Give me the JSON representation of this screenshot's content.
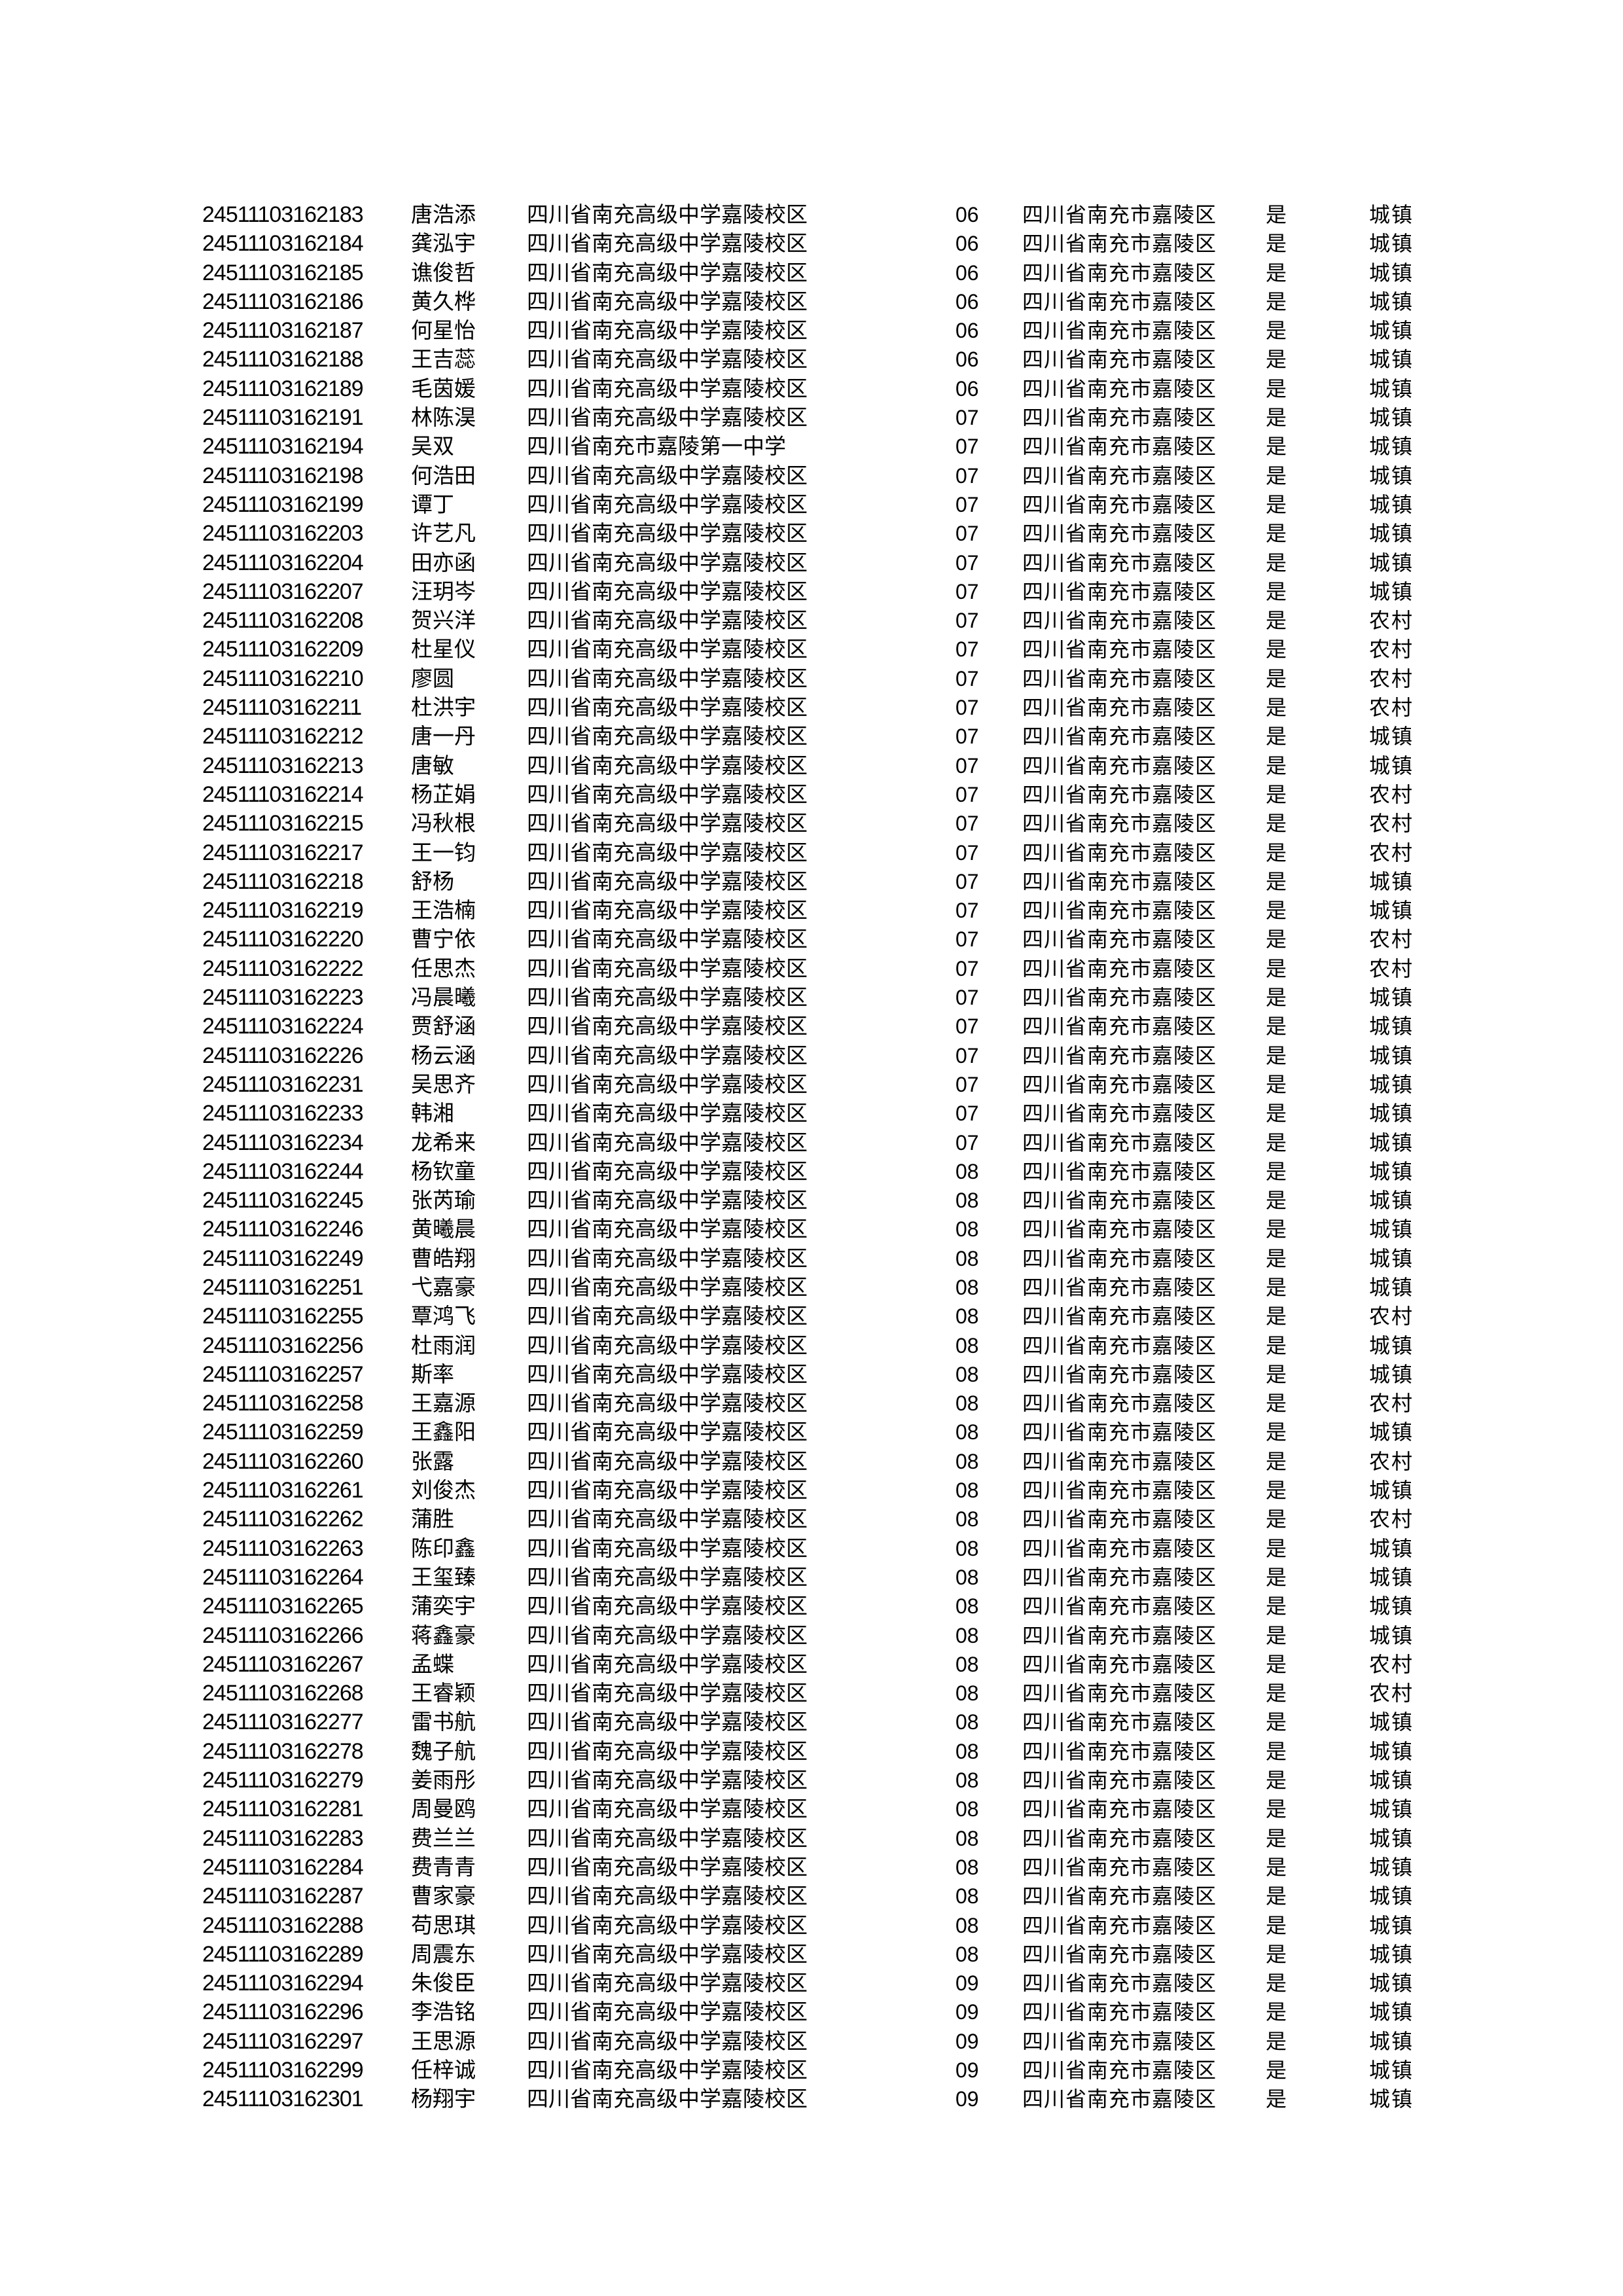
{
  "rows": [
    {
      "id": "24511103162183",
      "name": "唐浩添",
      "school": "四川省南充高级中学嘉陵校区",
      "class": "06",
      "region": "四川省南充市嘉陵区",
      "local": "是",
      "type": "城镇"
    },
    {
      "id": "24511103162184",
      "name": "龚泓宇",
      "school": "四川省南充高级中学嘉陵校区",
      "class": "06",
      "region": "四川省南充市嘉陵区",
      "local": "是",
      "type": "城镇"
    },
    {
      "id": "24511103162185",
      "name": "谯俊哲",
      "school": "四川省南充高级中学嘉陵校区",
      "class": "06",
      "region": "四川省南充市嘉陵区",
      "local": "是",
      "type": "城镇"
    },
    {
      "id": "24511103162186",
      "name": "黄久桦",
      "school": "四川省南充高级中学嘉陵校区",
      "class": "06",
      "region": "四川省南充市嘉陵区",
      "local": "是",
      "type": "城镇"
    },
    {
      "id": "24511103162187",
      "name": "何星怡",
      "school": "四川省南充高级中学嘉陵校区",
      "class": "06",
      "region": "四川省南充市嘉陵区",
      "local": "是",
      "type": "城镇"
    },
    {
      "id": "24511103162188",
      "name": "王吉蕊",
      "school": "四川省南充高级中学嘉陵校区",
      "class": "06",
      "region": "四川省南充市嘉陵区",
      "local": "是",
      "type": "城镇"
    },
    {
      "id": "24511103162189",
      "name": "毛茵媛",
      "school": "四川省南充高级中学嘉陵校区",
      "class": "06",
      "region": "四川省南充市嘉陵区",
      "local": "是",
      "type": "城镇"
    },
    {
      "id": "24511103162191",
      "name": "林陈淏",
      "school": "四川省南充高级中学嘉陵校区",
      "class": "07",
      "region": "四川省南充市嘉陵区",
      "local": "是",
      "type": "城镇"
    },
    {
      "id": "24511103162194",
      "name": "吴双",
      "school": "四川省南充市嘉陵第一中学",
      "class": "07",
      "region": "四川省南充市嘉陵区",
      "local": "是",
      "type": "城镇"
    },
    {
      "id": "24511103162198",
      "name": "何浩田",
      "school": "四川省南充高级中学嘉陵校区",
      "class": "07",
      "region": "四川省南充市嘉陵区",
      "local": "是",
      "type": "城镇"
    },
    {
      "id": "24511103162199",
      "name": "谭丁",
      "school": "四川省南充高级中学嘉陵校区",
      "class": "07",
      "region": "四川省南充市嘉陵区",
      "local": "是",
      "type": "城镇"
    },
    {
      "id": "24511103162203",
      "name": "许艺凡",
      "school": "四川省南充高级中学嘉陵校区",
      "class": "07",
      "region": "四川省南充市嘉陵区",
      "local": "是",
      "type": "城镇"
    },
    {
      "id": "24511103162204",
      "name": "田亦函",
      "school": "四川省南充高级中学嘉陵校区",
      "class": "07",
      "region": "四川省南充市嘉陵区",
      "local": "是",
      "type": "城镇"
    },
    {
      "id": "24511103162207",
      "name": "汪玥岑",
      "school": "四川省南充高级中学嘉陵校区",
      "class": "07",
      "region": "四川省南充市嘉陵区",
      "local": "是",
      "type": "城镇"
    },
    {
      "id": "24511103162208",
      "name": "贺兴洋",
      "school": "四川省南充高级中学嘉陵校区",
      "class": "07",
      "region": "四川省南充市嘉陵区",
      "local": "是",
      "type": "农村"
    },
    {
      "id": "24511103162209",
      "name": "杜星仪",
      "school": "四川省南充高级中学嘉陵校区",
      "class": "07",
      "region": "四川省南充市嘉陵区",
      "local": "是",
      "type": "农村"
    },
    {
      "id": "24511103162210",
      "name": "廖圆",
      "school": "四川省南充高级中学嘉陵校区",
      "class": "07",
      "region": "四川省南充市嘉陵区",
      "local": "是",
      "type": "农村"
    },
    {
      "id": "24511103162211",
      "name": "杜洪宇",
      "school": "四川省南充高级中学嘉陵校区",
      "class": "07",
      "region": "四川省南充市嘉陵区",
      "local": "是",
      "type": "农村"
    },
    {
      "id": "24511103162212",
      "name": "唐一丹",
      "school": "四川省南充高级中学嘉陵校区",
      "class": "07",
      "region": "四川省南充市嘉陵区",
      "local": "是",
      "type": "城镇"
    },
    {
      "id": "24511103162213",
      "name": "唐敏",
      "school": "四川省南充高级中学嘉陵校区",
      "class": "07",
      "region": "四川省南充市嘉陵区",
      "local": "是",
      "type": "城镇"
    },
    {
      "id": "24511103162214",
      "name": "杨芷娟",
      "school": "四川省南充高级中学嘉陵校区",
      "class": "07",
      "region": "四川省南充市嘉陵区",
      "local": "是",
      "type": "农村"
    },
    {
      "id": "24511103162215",
      "name": "冯秋根",
      "school": "四川省南充高级中学嘉陵校区",
      "class": "07",
      "region": "四川省南充市嘉陵区",
      "local": "是",
      "type": "农村"
    },
    {
      "id": "24511103162217",
      "name": "王一钧",
      "school": "四川省南充高级中学嘉陵校区",
      "class": "07",
      "region": "四川省南充市嘉陵区",
      "local": "是",
      "type": "农村"
    },
    {
      "id": "24511103162218",
      "name": "舒杨",
      "school": "四川省南充高级中学嘉陵校区",
      "class": "07",
      "region": "四川省南充市嘉陵区",
      "local": "是",
      "type": "城镇"
    },
    {
      "id": "24511103162219",
      "name": "王浩楠",
      "school": "四川省南充高级中学嘉陵校区",
      "class": "07",
      "region": "四川省南充市嘉陵区",
      "local": "是",
      "type": "城镇"
    },
    {
      "id": "24511103162220",
      "name": "曹宁依",
      "school": "四川省南充高级中学嘉陵校区",
      "class": "07",
      "region": "四川省南充市嘉陵区",
      "local": "是",
      "type": "农村"
    },
    {
      "id": "24511103162222",
      "name": "任思杰",
      "school": "四川省南充高级中学嘉陵校区",
      "class": "07",
      "region": "四川省南充市嘉陵区",
      "local": "是",
      "type": "农村"
    },
    {
      "id": "24511103162223",
      "name": "冯晨曦",
      "school": "四川省南充高级中学嘉陵校区",
      "class": "07",
      "region": "四川省南充市嘉陵区",
      "local": "是",
      "type": "城镇"
    },
    {
      "id": "24511103162224",
      "name": "贾舒涵",
      "school": "四川省南充高级中学嘉陵校区",
      "class": "07",
      "region": "四川省南充市嘉陵区",
      "local": "是",
      "type": "城镇"
    },
    {
      "id": "24511103162226",
      "name": "杨云涵",
      "school": "四川省南充高级中学嘉陵校区",
      "class": "07",
      "region": "四川省南充市嘉陵区",
      "local": "是",
      "type": "城镇"
    },
    {
      "id": "24511103162231",
      "name": "吴思齐",
      "school": "四川省南充高级中学嘉陵校区",
      "class": "07",
      "region": "四川省南充市嘉陵区",
      "local": "是",
      "type": "城镇"
    },
    {
      "id": "24511103162233",
      "name": "韩湘",
      "school": "四川省南充高级中学嘉陵校区",
      "class": "07",
      "region": "四川省南充市嘉陵区",
      "local": "是",
      "type": "城镇"
    },
    {
      "id": "24511103162234",
      "name": "龙希来",
      "school": "四川省南充高级中学嘉陵校区",
      "class": "07",
      "region": "四川省南充市嘉陵区",
      "local": "是",
      "type": "城镇"
    },
    {
      "id": "24511103162244",
      "name": "杨钦童",
      "school": "四川省南充高级中学嘉陵校区",
      "class": "08",
      "region": "四川省南充市嘉陵区",
      "local": "是",
      "type": "城镇"
    },
    {
      "id": "24511103162245",
      "name": "张芮瑜",
      "school": "四川省南充高级中学嘉陵校区",
      "class": "08",
      "region": "四川省南充市嘉陵区",
      "local": "是",
      "type": "城镇"
    },
    {
      "id": "24511103162246",
      "name": "黄曦晨",
      "school": "四川省南充高级中学嘉陵校区",
      "class": "08",
      "region": "四川省南充市嘉陵区",
      "local": "是",
      "type": "城镇"
    },
    {
      "id": "24511103162249",
      "name": "曹皓翔",
      "school": "四川省南充高级中学嘉陵校区",
      "class": "08",
      "region": "四川省南充市嘉陵区",
      "local": "是",
      "type": "城镇"
    },
    {
      "id": "24511103162251",
      "name": "弋嘉豪",
      "school": "四川省南充高级中学嘉陵校区",
      "class": "08",
      "region": "四川省南充市嘉陵区",
      "local": "是",
      "type": "城镇"
    },
    {
      "id": "24511103162255",
      "name": "覃鸿飞",
      "school": "四川省南充高级中学嘉陵校区",
      "class": "08",
      "region": "四川省南充市嘉陵区",
      "local": "是",
      "type": "农村"
    },
    {
      "id": "24511103162256",
      "name": "杜雨润",
      "school": "四川省南充高级中学嘉陵校区",
      "class": "08",
      "region": "四川省南充市嘉陵区",
      "local": "是",
      "type": "城镇"
    },
    {
      "id": "24511103162257",
      "name": "斯率",
      "school": "四川省南充高级中学嘉陵校区",
      "class": "08",
      "region": "四川省南充市嘉陵区",
      "local": "是",
      "type": "城镇"
    },
    {
      "id": "24511103162258",
      "name": "王嘉源",
      "school": "四川省南充高级中学嘉陵校区",
      "class": "08",
      "region": "四川省南充市嘉陵区",
      "local": "是",
      "type": "农村"
    },
    {
      "id": "24511103162259",
      "name": "王鑫阳",
      "school": "四川省南充高级中学嘉陵校区",
      "class": "08",
      "region": "四川省南充市嘉陵区",
      "local": "是",
      "type": "城镇"
    },
    {
      "id": "24511103162260",
      "name": "张露",
      "school": "四川省南充高级中学嘉陵校区",
      "class": "08",
      "region": "四川省南充市嘉陵区",
      "local": "是",
      "type": "农村"
    },
    {
      "id": "24511103162261",
      "name": "刘俊杰",
      "school": "四川省南充高级中学嘉陵校区",
      "class": "08",
      "region": "四川省南充市嘉陵区",
      "local": "是",
      "type": "城镇"
    },
    {
      "id": "24511103162262",
      "name": "蒲胜",
      "school": "四川省南充高级中学嘉陵校区",
      "class": "08",
      "region": "四川省南充市嘉陵区",
      "local": "是",
      "type": "农村"
    },
    {
      "id": "24511103162263",
      "name": "陈印鑫",
      "school": "四川省南充高级中学嘉陵校区",
      "class": "08",
      "region": "四川省南充市嘉陵区",
      "local": "是",
      "type": "城镇"
    },
    {
      "id": "24511103162264",
      "name": "王玺臻",
      "school": "四川省南充高级中学嘉陵校区",
      "class": "08",
      "region": "四川省南充市嘉陵区",
      "local": "是",
      "type": "城镇"
    },
    {
      "id": "24511103162265",
      "name": "蒲奕宇",
      "school": "四川省南充高级中学嘉陵校区",
      "class": "08",
      "region": "四川省南充市嘉陵区",
      "local": "是",
      "type": "城镇"
    },
    {
      "id": "24511103162266",
      "name": "蒋鑫豪",
      "school": "四川省南充高级中学嘉陵校区",
      "class": "08",
      "region": "四川省南充市嘉陵区",
      "local": "是",
      "type": "城镇"
    },
    {
      "id": "24511103162267",
      "name": "孟蝶",
      "school": "四川省南充高级中学嘉陵校区",
      "class": "08",
      "region": "四川省南充市嘉陵区",
      "local": "是",
      "type": "农村"
    },
    {
      "id": "24511103162268",
      "name": "王睿颖",
      "school": "四川省南充高级中学嘉陵校区",
      "class": "08",
      "region": "四川省南充市嘉陵区",
      "local": "是",
      "type": "农村"
    },
    {
      "id": "24511103162277",
      "name": "雷书航",
      "school": "四川省南充高级中学嘉陵校区",
      "class": "08",
      "region": "四川省南充市嘉陵区",
      "local": "是",
      "type": "城镇"
    },
    {
      "id": "24511103162278",
      "name": "魏子航",
      "school": "四川省南充高级中学嘉陵校区",
      "class": "08",
      "region": "四川省南充市嘉陵区",
      "local": "是",
      "type": "城镇"
    },
    {
      "id": "24511103162279",
      "name": "姜雨彤",
      "school": "四川省南充高级中学嘉陵校区",
      "class": "08",
      "region": "四川省南充市嘉陵区",
      "local": "是",
      "type": "城镇"
    },
    {
      "id": "24511103162281",
      "name": "周曼鸥",
      "school": "四川省南充高级中学嘉陵校区",
      "class": "08",
      "region": "四川省南充市嘉陵区",
      "local": "是",
      "type": "城镇"
    },
    {
      "id": "24511103162283",
      "name": "费兰兰",
      "school": "四川省南充高级中学嘉陵校区",
      "class": "08",
      "region": "四川省南充市嘉陵区",
      "local": "是",
      "type": "城镇"
    },
    {
      "id": "24511103162284",
      "name": "费青青",
      "school": "四川省南充高级中学嘉陵校区",
      "class": "08",
      "region": "四川省南充市嘉陵区",
      "local": "是",
      "type": "城镇"
    },
    {
      "id": "24511103162287",
      "name": "曹家豪",
      "school": "四川省南充高级中学嘉陵校区",
      "class": "08",
      "region": "四川省南充市嘉陵区",
      "local": "是",
      "type": "城镇"
    },
    {
      "id": "24511103162288",
      "name": "苟思琪",
      "school": "四川省南充高级中学嘉陵校区",
      "class": "08",
      "region": "四川省南充市嘉陵区",
      "local": "是",
      "type": "城镇"
    },
    {
      "id": "24511103162289",
      "name": "周震东",
      "school": "四川省南充高级中学嘉陵校区",
      "class": "08",
      "region": "四川省南充市嘉陵区",
      "local": "是",
      "type": "城镇"
    },
    {
      "id": "24511103162294",
      "name": "朱俊臣",
      "school": "四川省南充高级中学嘉陵校区",
      "class": "09",
      "region": "四川省南充市嘉陵区",
      "local": "是",
      "type": "城镇"
    },
    {
      "id": "24511103162296",
      "name": "李浩铭",
      "school": "四川省南充高级中学嘉陵校区",
      "class": "09",
      "region": "四川省南充市嘉陵区",
      "local": "是",
      "type": "城镇"
    },
    {
      "id": "24511103162297",
      "name": "王思源",
      "school": "四川省南充高级中学嘉陵校区",
      "class": "09",
      "region": "四川省南充市嘉陵区",
      "local": "是",
      "type": "城镇"
    },
    {
      "id": "24511103162299",
      "name": "任梓诚",
      "school": "四川省南充高级中学嘉陵校区",
      "class": "09",
      "region": "四川省南充市嘉陵区",
      "local": "是",
      "type": "城镇"
    },
    {
      "id": "24511103162301",
      "name": "杨翔宇",
      "school": "四川省南充高级中学嘉陵校区",
      "class": "09",
      "region": "四川省南充市嘉陵区",
      "local": "是",
      "type": "城镇"
    }
  ]
}
